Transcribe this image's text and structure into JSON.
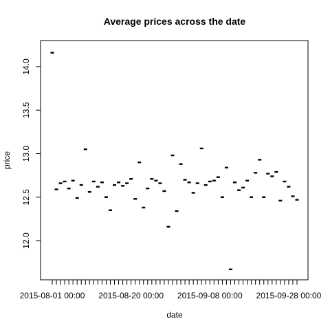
{
  "chart_data": {
    "type": "scatter",
    "title": "Average prices across the date",
    "xlabel": "date",
    "ylabel": "price",
    "x_start": "2015-08-01",
    "x_tick_labels": [
      "2015-08-01 00:00",
      "2015-08-20 00:00",
      "2015-09-08 00:00",
      "2015-09-28 00:00"
    ],
    "y_ticks": [
      "12.0",
      "12.5",
      "13.0",
      "13.5",
      "14.0"
    ],
    "ylim": [
      11.55,
      14.3
    ],
    "grid": false,
    "series": [
      {
        "values": [
          14.16,
          12.59,
          12.66,
          12.68,
          12.6,
          12.69,
          12.49,
          12.64,
          13.05,
          12.56,
          12.68,
          12.62,
          12.67,
          12.5,
          12.35,
          12.64,
          12.67,
          12.63,
          12.66,
          12.71,
          12.48,
          12.9,
          12.38,
          12.6,
          12.71,
          12.69,
          12.66,
          12.57,
          12.16,
          12.98,
          12.34,
          12.88,
          12.7,
          12.67,
          12.55,
          12.66,
          13.06,
          12.64,
          12.68,
          12.69,
          12.73,
          12.5,
          12.84,
          11.67,
          12.67,
          12.58,
          12.61,
          12.69,
          12.5,
          12.78,
          12.93,
          12.5,
          12.77,
          12.74,
          12.79,
          12.46,
          12.68,
          12.62,
          12.51,
          12.47
        ]
      }
    ]
  }
}
